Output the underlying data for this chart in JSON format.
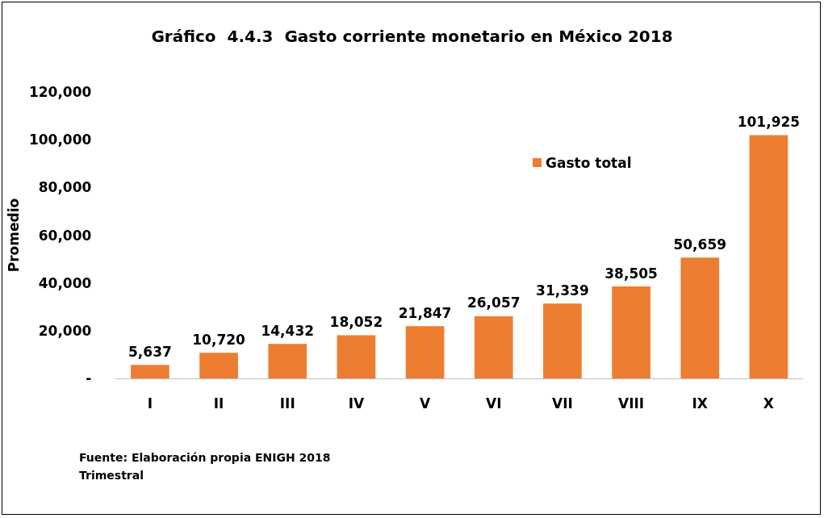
{
  "chart_data": {
    "type": "bar",
    "title": "Gráfico  4.4.3  Gasto corriente monetario en México 2018",
    "ylabel": "Promedio",
    "categories": [
      "I",
      "II",
      "III",
      "IV",
      "V",
      "VI",
      "VII",
      "VIII",
      "IX",
      "X"
    ],
    "series": [
      {
        "name": "Gasto total",
        "color": "#ed7d31",
        "values": [
          5637,
          10720,
          14432,
          18052,
          21847,
          26057,
          31339,
          38505,
          50659,
          101925
        ],
        "value_labels": [
          "5,637",
          "10,720",
          "14,432",
          "18,052",
          "21,847",
          "26,057",
          "31,339",
          "38,505",
          "50,659",
          "101,925"
        ]
      }
    ],
    "ylim": [
      0,
      120000
    ],
    "yticks": [
      {
        "value": 0,
        "label": "-"
      },
      {
        "value": 20000,
        "label": "20,000"
      },
      {
        "value": 40000,
        "label": "40,000"
      },
      {
        "value": 60000,
        "label": "60,000"
      },
      {
        "value": 80000,
        "label": "80,000"
      },
      {
        "value": 100000,
        "label": "100,000"
      },
      {
        "value": 120000,
        "label": "120,000"
      }
    ],
    "grid": false,
    "legend": "top right",
    "annotations": [
      "Fuente: Elaboración propia ENIGH 2018",
      "Trimestral"
    ]
  }
}
